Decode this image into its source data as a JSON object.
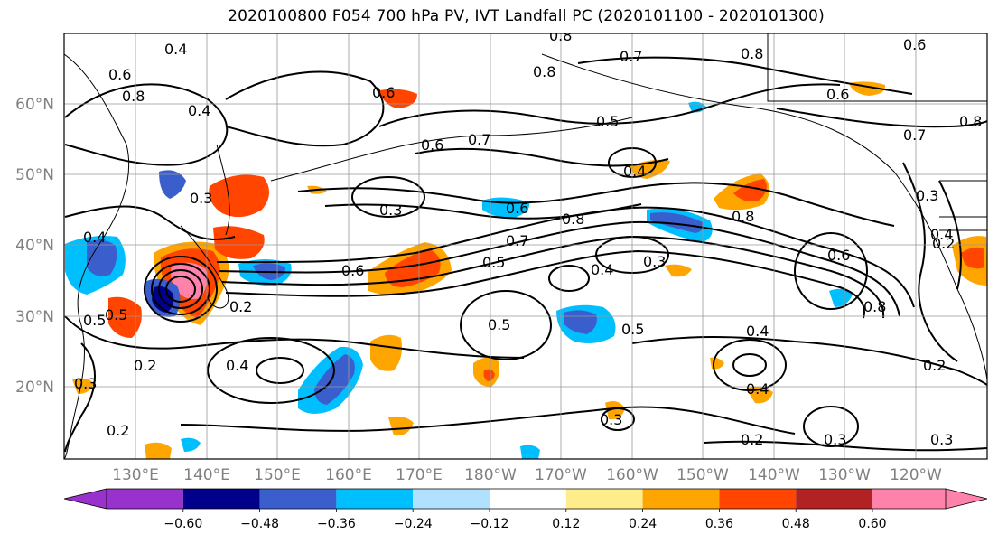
{
  "title": "2020100800 F054 700 hPa PV, IVT Landfall PC (2020101100 - 2020101300)",
  "map": {
    "lat_labels": [
      "60°N",
      "50°N",
      "40°N",
      "30°N",
      "20°N"
    ],
    "lon_labels": [
      "130°E",
      "140°E",
      "150°E",
      "160°E",
      "170°E",
      "180°W",
      "170°W",
      "160°W",
      "150°W",
      "140°W",
      "130°W",
      "120°W"
    ],
    "contour_labels": [
      "0.4",
      "0.6",
      "0.8",
      "0.7",
      "0.8",
      "0.6",
      "0.7",
      "0.8",
      "0.6",
      "0.4",
      "0.5",
      "0.8",
      "0.8",
      "0.6",
      "0.7",
      "0.6",
      "0.4",
      "0.3",
      "0.3",
      "0.4",
      "0.6",
      "0.8",
      "0.8",
      "0.3",
      "0.4",
      "0.2",
      "0.5",
      "0.7",
      "0.6",
      "0.5",
      "0.4",
      "0.3",
      "0.6",
      "0.8",
      "0.2",
      "0.5",
      "0.5",
      "0.5",
      "0.4",
      "0.2",
      "0.4",
      "0.4",
      "0.3",
      "0.2",
      "0.3",
      "0.3",
      "0.2",
      "0.3",
      "0.2"
    ]
  },
  "colorbar": {
    "ticks": [
      "−0.60",
      "−0.48",
      "−0.36",
      "−0.24",
      "−0.12",
      "0.12",
      "0.24",
      "0.36",
      "0.48",
      "0.60"
    ],
    "colors": [
      "#9932cc",
      "#00008b",
      "#3a5fcd",
      "#00bfff",
      "#b0e2ff",
      "#ffffff",
      "#ffec8b",
      "#ffa500",
      "#ff4500",
      "#b22222",
      "#ff82ab"
    ]
  },
  "colors": {
    "contour": "#000000",
    "grid": "#999999",
    "axis_label": "#808080"
  }
}
